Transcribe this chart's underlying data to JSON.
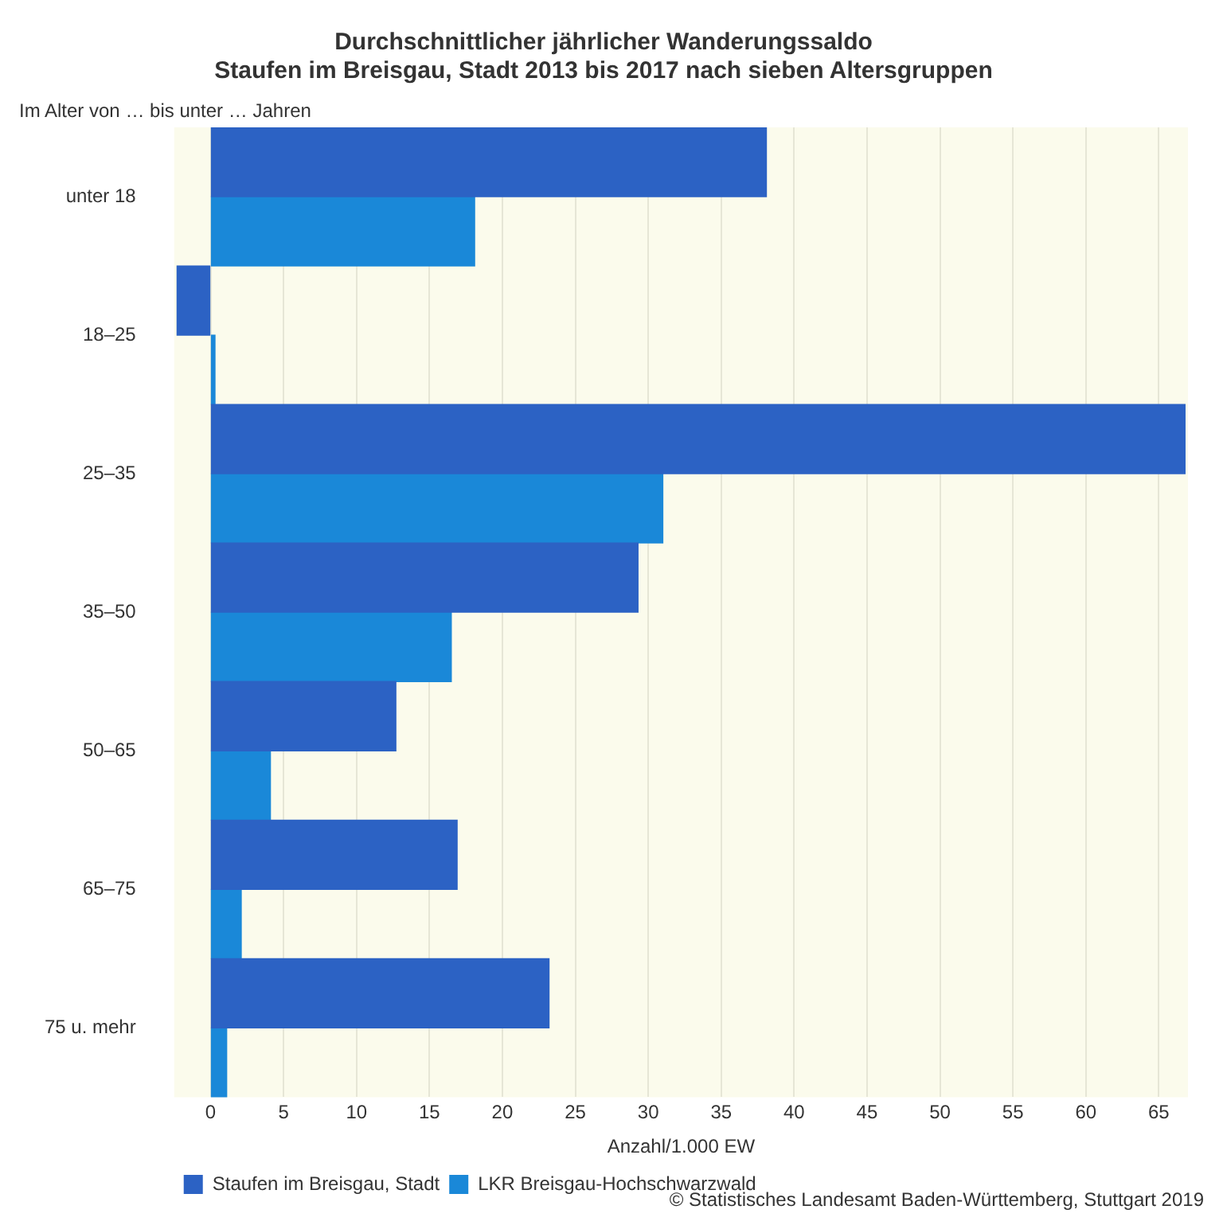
{
  "chart_data": {
    "type": "bar",
    "orientation": "horizontal",
    "title": "Durchschnittlicher jährlicher Wanderungssaldo\nStaufen im Breisgau, Stadt 2013 bis 2017 nach sieben Altersgruppen",
    "ylabel": "Im Alter von … bis unter … Jahren",
    "xlabel": "Anzahl/1.000 EW",
    "categories": [
      "unter 18",
      "18–25",
      "25–35",
      "35–50",
      "50–65",
      "65–75",
      "75 u. mehr"
    ],
    "series": [
      {
        "name": "Staufen im Breisgau, Stadt",
        "color": "#2c62c4",
        "values": [
          38.1,
          -2.3,
          66.8,
          29.3,
          12.7,
          16.9,
          23.2
        ]
      },
      {
        "name": "LKR Breisgau-Hochschwarzwald",
        "color": "#1a88d8",
        "values": [
          18.1,
          0.3,
          31.0,
          16.5,
          4.1,
          2.1,
          1.1
        ]
      }
    ],
    "xlim": [
      -2.5,
      67
    ],
    "xticks": [
      0,
      5,
      10,
      15,
      20,
      25,
      30,
      35,
      40,
      45,
      50,
      55,
      60,
      65
    ],
    "grid": "x",
    "legend": "bottom left",
    "annotations": [
      "© Statistisches Landesamt Baden-Württemberg, Stuttgart 2019"
    ]
  }
}
